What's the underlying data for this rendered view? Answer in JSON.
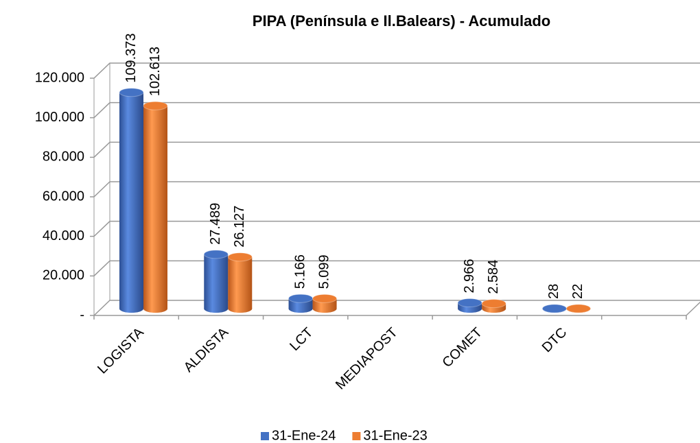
{
  "chart_data": {
    "type": "bar3d",
    "title": "PIPA  (Península e Il.Balears) - Acumulado",
    "categories": [
      "LOGISTA",
      "ALDISTA",
      "LCT",
      "MEDIAPOST",
      "COMET",
      "DTC",
      null
    ],
    "series": [
      {
        "name": "31-Ene-24",
        "color": "#4472c4",
        "values": [
          109373,
          27489,
          5166,
          null,
          2966,
          28,
          null
        ],
        "value_labels": [
          "109.373",
          "27.489",
          "5.166",
          null,
          "2.966",
          "28",
          null
        ]
      },
      {
        "name": "31-Ene-23",
        "color": "#ed7d31",
        "values": [
          102613,
          26127,
          5099,
          null,
          2584,
          22,
          null
        ],
        "value_labels": [
          "102.613",
          "26.127",
          "5.099",
          null,
          "2.584",
          "22",
          null
        ]
      }
    ],
    "ylim": [
      0,
      120000
    ],
    "yticks": [
      {
        "value": 0,
        "label": "-"
      },
      {
        "value": 20000,
        "label": "20.000"
      },
      {
        "value": 40000,
        "label": "40.000"
      },
      {
        "value": 60000,
        "label": "60.000"
      },
      {
        "value": 80000,
        "label": "80.000"
      },
      {
        "value": 100000,
        "label": "100.000"
      },
      {
        "value": 120000,
        "label": "120.000"
      }
    ],
    "grid": true,
    "legend": "bottom"
  }
}
